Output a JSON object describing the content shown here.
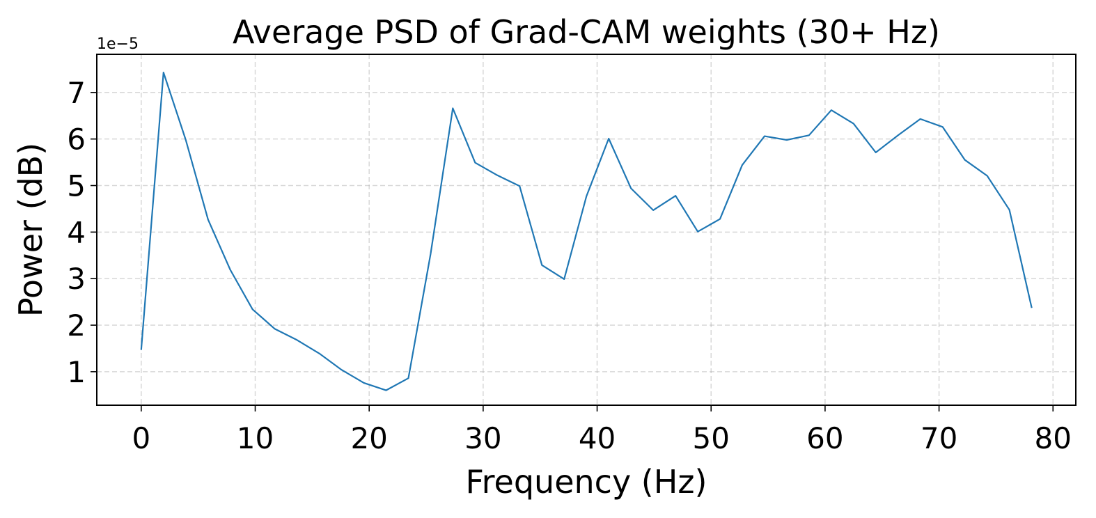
{
  "chart_data": {
    "type": "line",
    "title": "Average PSD of Grad-CAM weights (30+ Hz)",
    "xlabel": "Frequency (Hz)",
    "ylabel": "Power (dB)",
    "y_offset_text": "1e−5",
    "xlim": [
      -3.9,
      82.0
    ],
    "ylim": [
      0.28,
      7.82
    ],
    "xticks": [
      0,
      10,
      20,
      30,
      40,
      50,
      60,
      70,
      80
    ],
    "xtick_labels": [
      "0",
      "10",
      "20",
      "30",
      "40",
      "50",
      "60",
      "70",
      "80"
    ],
    "yticks": [
      1,
      2,
      3,
      4,
      5,
      6,
      7
    ],
    "ytick_labels": [
      "1",
      "2",
      "3",
      "4",
      "5",
      "6",
      "7"
    ],
    "grid": true,
    "legend": "none",
    "series": [
      {
        "color": "#1f77b4",
        "x": [
          0,
          1.95,
          3.91,
          5.86,
          7.81,
          9.77,
          11.72,
          13.67,
          15.63,
          17.58,
          19.53,
          21.48,
          23.44,
          25.39,
          27.34,
          29.3,
          31.25,
          33.2,
          35.16,
          37.11,
          39.06,
          41.02,
          42.97,
          44.92,
          46.88,
          48.83,
          50.78,
          52.73,
          54.69,
          56.64,
          58.59,
          60.55,
          62.5,
          64.45,
          66.41,
          68.36,
          70.31,
          72.27,
          74.22,
          76.17,
          78.13
        ],
        "values": [
          1.47,
          7.43,
          5.98,
          4.27,
          3.19,
          2.34,
          1.92,
          1.68,
          1.39,
          1.04,
          0.76,
          0.6,
          0.86,
          3.53,
          6.66,
          5.49,
          5.22,
          4.99,
          3.29,
          2.99,
          4.77,
          6.01,
          4.94,
          4.47,
          4.78,
          4.01,
          4.28,
          5.44,
          6.06,
          5.98,
          6.08,
          6.62,
          6.33,
          5.71,
          6.08,
          6.43,
          6.26,
          5.55,
          5.21,
          4.48,
          2.37
        ]
      }
    ]
  }
}
